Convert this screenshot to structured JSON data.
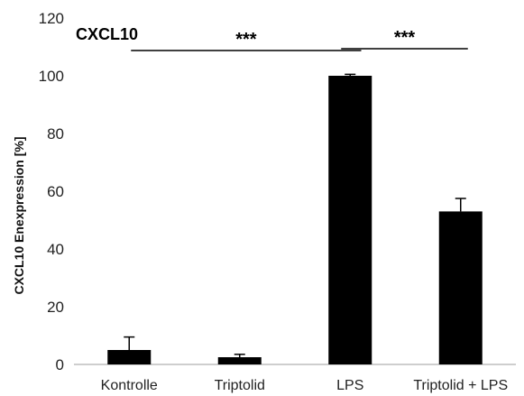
{
  "chart_data": {
    "type": "bar",
    "title": "CXCL10",
    "xlabel": "",
    "ylabel": "CXCL10 Enexpression [%]",
    "categories": [
      "Kontrolle",
      "Triptolid",
      "LPS",
      "Triptolid + LPS"
    ],
    "values": [
      5,
      2.5,
      100,
      53
    ],
    "error_plus": [
      4.5,
      1,
      0.5,
      4.5
    ],
    "ylim": [
      0,
      120
    ],
    "yticks": [
      "0",
      "20",
      "40",
      "60",
      "80",
      "100",
      "120"
    ],
    "grid": false,
    "bar_color": "#000000",
    "significance": [
      {
        "label": "***",
        "from_category": "Kontrolle",
        "to_category": "LPS"
      },
      {
        "label": "***",
        "from_category": "LPS",
        "to_category": "Triptolid + LPS"
      }
    ]
  }
}
